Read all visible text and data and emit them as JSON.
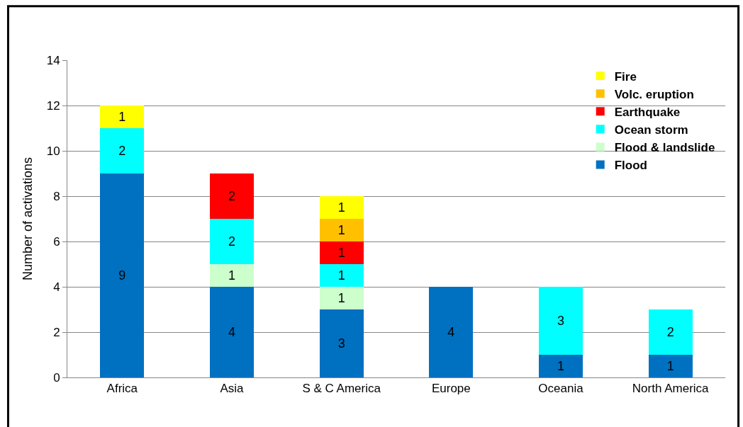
{
  "chart_data": {
    "type": "bar",
    "stacked": true,
    "ylabel": "Number of activations",
    "categories": [
      "Africa",
      "Asia",
      "S & C America",
      "Europe",
      "Oceania",
      "North America"
    ],
    "series": [
      {
        "name": "Flood",
        "color": "#0070c0",
        "values": [
          9,
          4,
          3,
          4,
          1,
          1
        ]
      },
      {
        "name": "Flood & landslide",
        "color": "#ccffcc",
        "values": [
          null,
          1,
          1,
          null,
          null,
          null
        ]
      },
      {
        "name": "Ocean storm",
        "color": "#00ffff",
        "values": [
          2,
          2,
          1,
          null,
          3,
          2
        ]
      },
      {
        "name": "Earthquake",
        "color": "#ff0000",
        "values": [
          null,
          2,
          1,
          null,
          null,
          null
        ]
      },
      {
        "name": "Volc. eruption",
        "color": "#ffc000",
        "values": [
          null,
          null,
          1,
          null,
          null,
          null
        ]
      },
      {
        "name": "Fire",
        "color": "#ffff00",
        "values": [
          1,
          null,
          1,
          null,
          null,
          null
        ]
      }
    ],
    "ylim": [
      0,
      14
    ],
    "yticks": [
      0,
      2,
      4,
      6,
      8,
      10,
      12,
      14
    ],
    "grid": "y",
    "legend": "top right",
    "data_labels": true
  }
}
